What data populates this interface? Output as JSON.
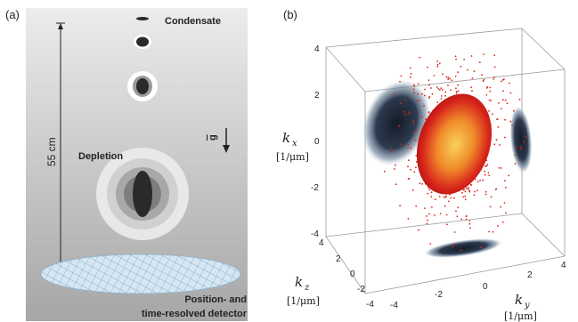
{
  "panel_a": {
    "label": "(a)",
    "condensate_label": "Condensate",
    "depletion_label": "Depletion",
    "distance_label": "55 cm",
    "gravity_label": "g",
    "detector_label_line1": "Position- and",
    "detector_label_line2": "time-resolved detector"
  },
  "panel_b": {
    "label": "(b)",
    "kx_label": "k",
    "kx_sub": "x",
    "kx_unit": "[1/μm]",
    "kz_label": "k",
    "kz_sub": "z",
    "kz_unit": "[1/μm]",
    "ky_label": "k",
    "ky_sub": "y",
    "ky_unit": "[1/μm]",
    "kx_ticks": [
      "4",
      "2",
      "0",
      "-2",
      "-4"
    ],
    "kz_ticks": [
      "4",
      "2",
      "0",
      "-2",
      "-4"
    ],
    "ky_ticks": [
      "-4",
      "-2",
      "0",
      "2",
      "4"
    ]
  },
  "colors": {
    "panel_gray_top": "#e6e6e6",
    "panel_gray_bottom": "#a9a9a9",
    "cloud_dark": "#2a2a2a",
    "projection_dark": "#1d2533",
    "hot_red": "#d8261c",
    "hot_yellow": "#f5c04a",
    "detector_blue": "#bcd6e8"
  }
}
